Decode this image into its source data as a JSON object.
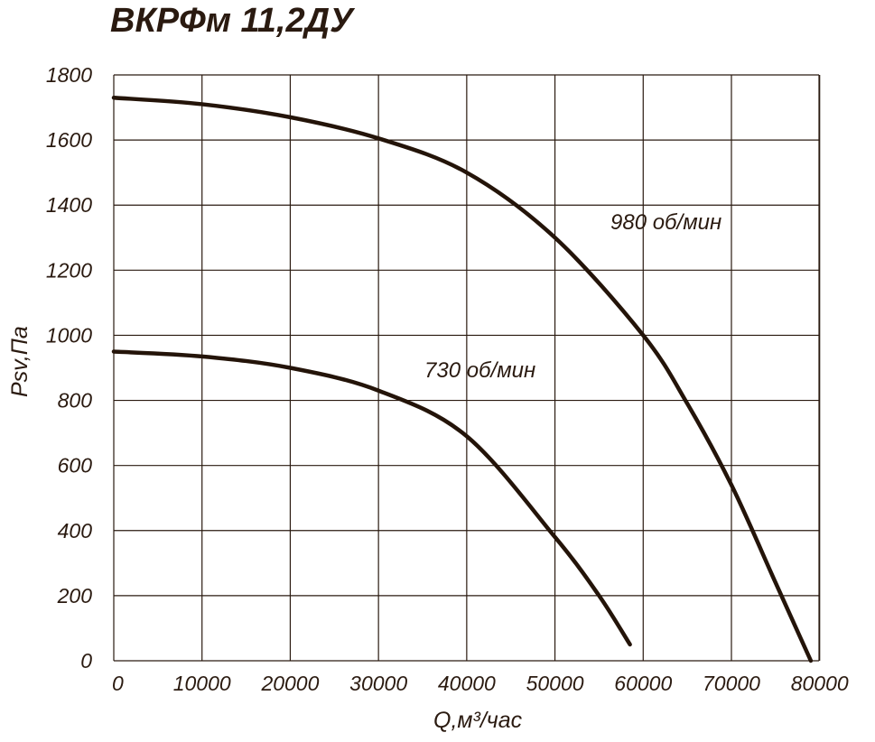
{
  "chart_data": {
    "type": "line",
    "title": "ВКРФм 11,2ДУ",
    "xlabel": "Q,м³/час",
    "ylabel": "Psv,Па",
    "xlim": [
      0,
      85000
    ],
    "ylim": [
      0,
      1800
    ],
    "x_ticks": [
      "0",
      "10000",
      "20000",
      "30000",
      "40000",
      "50000",
      "60000",
      "70000",
      "80000"
    ],
    "y_ticks": [
      "0",
      "200",
      "400",
      "600",
      "800",
      "1000",
      "1200",
      "1400",
      "1600",
      "1800"
    ],
    "grid": true,
    "series": [
      {
        "name": "980 об/мин",
        "x": [
          0,
          10000,
          20000,
          30000,
          40000,
          50000,
          60000,
          65000,
          70000,
          75000,
          79000
        ],
        "y": [
          1730,
          1710,
          1670,
          1605,
          1500,
          1300,
          1000,
          790,
          540,
          240,
          0
        ]
      },
      {
        "name": "730 об/мин",
        "x": [
          0,
          10000,
          20000,
          30000,
          40000,
          50000,
          55000,
          58500
        ],
        "y": [
          950,
          935,
          900,
          830,
          690,
          380,
          200,
          50
        ]
      }
    ]
  }
}
